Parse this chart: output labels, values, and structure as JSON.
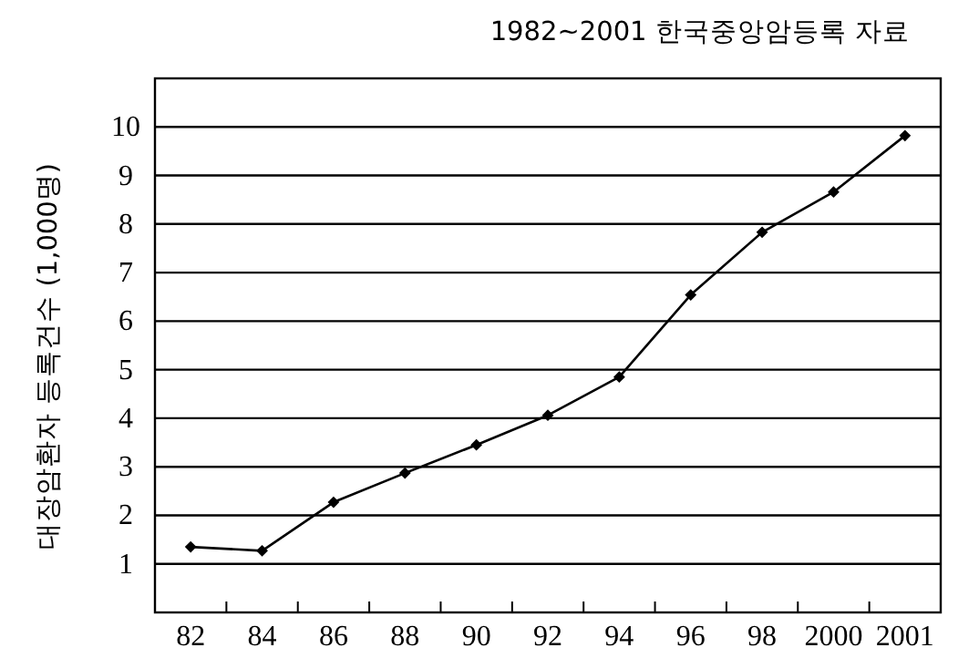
{
  "chart_data": {
    "type": "line",
    "title": "1982~2001 한국중앙암등록 자료",
    "ylabel": "대장암환자 등록건수 (1,000명)",
    "categories": [
      "82",
      "84",
      "86",
      "88",
      "90",
      "92",
      "94",
      "96",
      "98",
      "2000",
      "2001"
    ],
    "values": [
      1.35,
      1.27,
      2.27,
      2.87,
      3.45,
      4.06,
      4.85,
      6.54,
      7.83,
      8.66,
      9.82
    ],
    "color": "#000000",
    "marker": "diamond",
    "line_style": "solid",
    "grid": "y",
    "ylim": [
      0,
      11
    ],
    "yticks": [
      1,
      2,
      3,
      4,
      5,
      6,
      7,
      8,
      9,
      10
    ]
  }
}
